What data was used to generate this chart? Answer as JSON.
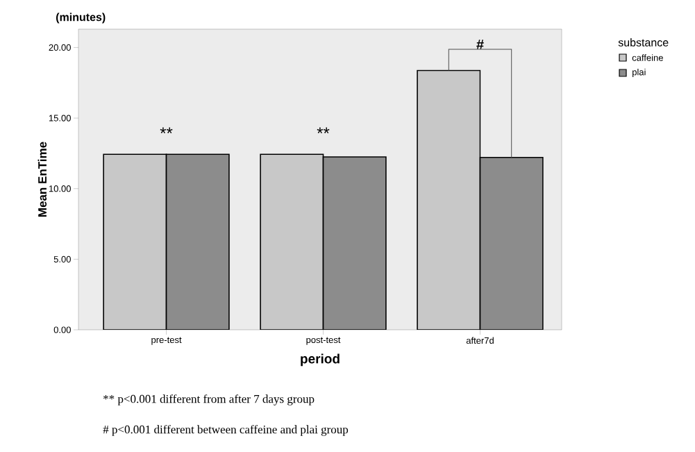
{
  "chart_data": {
    "type": "bar",
    "xlabel": "period",
    "ylabel": "Mean EnTime",
    "legend_title": "substance",
    "legend": "right",
    "categories": [
      "pre-test",
      "post-test",
      "after7d"
    ],
    "series": [
      {
        "name": "caffeine",
        "color": "#c8c8c8",
        "values": [
          12.43,
          12.43,
          18.37
        ]
      },
      {
        "name": "plai",
        "color": "#8c8c8c",
        "values": [
          12.43,
          12.25,
          12.21
        ]
      }
    ],
    "ylim": [
      0,
      21.3
    ],
    "yticks": [
      {
        "value": 0,
        "label": "0.00"
      },
      {
        "value": 5,
        "label": "5.00"
      },
      {
        "value": 10,
        "label": "10.00"
      },
      {
        "value": 15,
        "label": "15.00"
      },
      {
        "value": 20,
        "label": "20.00"
      }
    ],
    "annotations": [
      "(minutes)",
      "**",
      "**",
      "#",
      "** p<0.001 different from after 7 days group",
      "# p<0.001 different between caffeine and plai group"
    ]
  }
}
